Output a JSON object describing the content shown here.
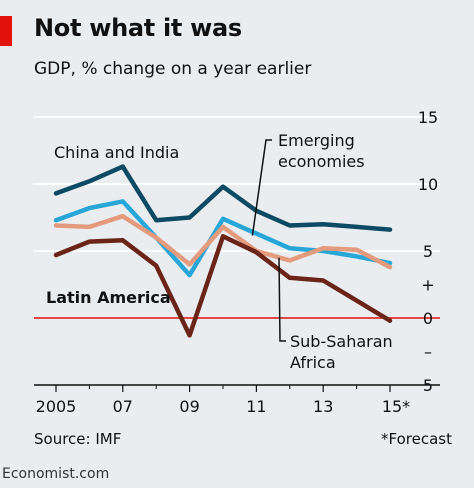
{
  "header": {
    "title": "Not what it was",
    "subtitle": "GDP, % change on a year earlier"
  },
  "footer": {
    "source": "Source: IMF",
    "note": "*Forecast",
    "brand": "Economist.com"
  },
  "colors": {
    "china_india": "#0d4a63",
    "emerging": "#29a6d8",
    "subsaharan": "#e39a7d",
    "latin": "#6b2418",
    "zero_line": "#e3120b",
    "grid": "#ffffff",
    "background": "#e9edf0",
    "accent_tag": "#e3120b"
  },
  "chart_data": {
    "type": "line",
    "x": [
      2005,
      2006,
      2007,
      2008,
      2009,
      2010,
      2011,
      2012,
      2013,
      2014,
      2015
    ],
    "x_tick_labels": [
      "2005",
      "07",
      "09",
      "11",
      "13",
      "15*"
    ],
    "x_tick_values": [
      2005,
      2007,
      2009,
      2011,
      2013,
      2015
    ],
    "y_tick_labels": [
      "15",
      "10",
      "5",
      "+",
      "0",
      "–",
      "5"
    ],
    "y_tick_values": [
      15,
      10,
      5,
      2.5,
      0,
      -2.5,
      -5
    ],
    "ylim": [
      -5,
      15
    ],
    "grid": true,
    "series": [
      {
        "name": "China and India",
        "color_key": "china_india",
        "values": [
          9.3,
          10.2,
          11.3,
          7.3,
          7.5,
          9.8,
          8.0,
          6.9,
          7.0,
          6.8,
          6.6
        ]
      },
      {
        "name": "Emerging economies",
        "color_key": "emerging",
        "values": [
          7.3,
          8.2,
          8.7,
          6.0,
          3.2,
          7.4,
          6.3,
          5.2,
          5.0,
          4.6,
          4.1
        ]
      },
      {
        "name": "Sub-Saharan Africa",
        "color_key": "subsaharan",
        "values": [
          6.9,
          6.8,
          7.6,
          6.0,
          4.0,
          6.8,
          5.0,
          4.3,
          5.2,
          5.1,
          3.8
        ]
      },
      {
        "name": "Latin America",
        "color_key": "latin",
        "values": [
          4.7,
          5.7,
          5.8,
          3.9,
          -1.3,
          6.1,
          4.9,
          3.0,
          2.8,
          1.3,
          -0.2
        ]
      }
    ],
    "labels": {
      "china_india": "China and India",
      "emerging_line1": "Emerging",
      "emerging_line2": "economies",
      "latin": "Latin America",
      "subsaharan_line1": "Sub-Saharan",
      "subsaharan_line2": "Africa"
    }
  }
}
